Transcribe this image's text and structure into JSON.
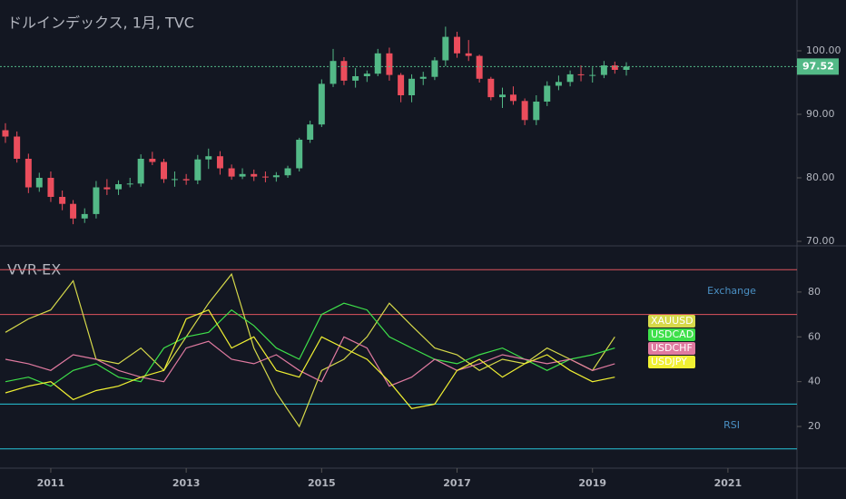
{
  "chart_data": [
    {
      "type": "candlestick",
      "title": "ドルインデックス, 1月, TVC",
      "x": [
        2010.33,
        2010.5,
        2010.67,
        2010.83,
        2011.0,
        2011.17,
        2011.33,
        2011.5,
        2011.67,
        2011.83,
        2012.0,
        2012.17,
        2012.33,
        2012.5,
        2012.67,
        2012.83,
        2013.0,
        2013.17,
        2013.33,
        2013.5,
        2013.67,
        2013.83,
        2014.0,
        2014.17,
        2014.33,
        2014.5,
        2014.67,
        2014.83,
        2015.0,
        2015.17,
        2015.33,
        2015.5,
        2015.67,
        2015.83,
        2016.0,
        2016.17,
        2016.33,
        2016.5,
        2016.67,
        2016.83,
        2017.0,
        2017.17,
        2017.33,
        2017.5,
        2017.67,
        2017.83,
        2018.0,
        2018.17,
        2018.33,
        2018.5,
        2018.67,
        2018.83,
        2019.0,
        2019.17,
        2019.33,
        2019.5
      ],
      "open": [
        87.5,
        86.5,
        83.0,
        78.5,
        80.0,
        77.0,
        75.9,
        73.6,
        74.3,
        78.5,
        78.2,
        79.0,
        79.1,
        83.0,
        82.5,
        79.8,
        79.8,
        79.6,
        82.9,
        83.4,
        81.5,
        80.2,
        80.6,
        80.2,
        80.1,
        80.4,
        81.5,
        86.0,
        88.4,
        94.8,
        98.4,
        95.3,
        96.0,
        96.4,
        99.6,
        96.2,
        93.0,
        95.6,
        95.9,
        98.5,
        102.2,
        99.6,
        99.2,
        95.6,
        92.7,
        93.1,
        92.1,
        89.1,
        92.0,
        94.5,
        95.1,
        96.3,
        96.2,
        96.2,
        97.7,
        97.0
      ],
      "high": [
        88.6,
        87.3,
        83.8,
        80.8,
        81.0,
        78.0,
        76.5,
        75.2,
        79.5,
        79.8,
        79.6,
        80.0,
        83.7,
        84.1,
        83.0,
        81.0,
        80.6,
        83.6,
        84.6,
        84.2,
        82.1,
        81.5,
        81.3,
        81.0,
        80.9,
        81.9,
        86.3,
        89.0,
        95.5,
        100.3,
        99.0,
        97.3,
        96.9,
        100.3,
        100.5,
        96.5,
        96.3,
        96.7,
        99.0,
        103.8,
        103.0,
        101.7,
        99.4,
        95.9,
        94.2,
        94.4,
        92.5,
        93.0,
        95.2,
        96.1,
        96.9,
        97.7,
        97.4,
        98.4,
        98.3,
        98.2
      ],
      "low": [
        85.5,
        82.4,
        77.6,
        77.8,
        76.2,
        74.9,
        72.7,
        72.9,
        73.6,
        77.3,
        77.3,
        78.5,
        78.6,
        82.0,
        79.2,
        78.6,
        78.9,
        79.0,
        81.4,
        80.5,
        79.7,
        79.8,
        79.5,
        79.3,
        79.4,
        80.0,
        81.0,
        85.5,
        88.0,
        94.3,
        94.6,
        94.2,
        95.1,
        96.0,
        95.3,
        91.9,
        91.9,
        94.6,
        95.4,
        97.6,
        98.9,
        98.4,
        95.0,
        92.2,
        91.0,
        91.5,
        88.3,
        88.3,
        91.3,
        93.8,
        94.4,
        95.2,
        95.0,
        95.7,
        96.4,
        96.1
      ],
      "close": [
        86.5,
        83.0,
        78.5,
        80.0,
        77.0,
        75.9,
        73.6,
        74.3,
        78.5,
        78.2,
        79.0,
        79.1,
        83.0,
        82.5,
        79.8,
        79.8,
        79.6,
        82.9,
        83.4,
        81.5,
        80.2,
        80.6,
        80.2,
        80.1,
        80.4,
        81.5,
        86.0,
        88.4,
        94.8,
        98.4,
        95.3,
        96.0,
        96.4,
        99.6,
        96.2,
        93.0,
        95.6,
        95.9,
        98.5,
        102.2,
        99.6,
        99.2,
        95.6,
        92.7,
        93.1,
        92.1,
        89.1,
        92.0,
        94.5,
        95.1,
        96.3,
        96.2,
        96.2,
        97.7,
        97.0,
        97.52
      ],
      "up_color": "#53b987",
      "down_color": "#eb4d5c",
      "xlim": [
        2010.25,
        2022.02
      ],
      "xticks": [
        2011,
        2013,
        2015,
        2017,
        2019,
        2021
      ],
      "ylim": [
        69.43,
        108
      ],
      "yticks": [
        {
          "value": 70,
          "label": "70.00"
        },
        {
          "value": 80,
          "label": "80.00"
        },
        {
          "value": 90,
          "label": "90.00"
        },
        {
          "value": 100,
          "label": "100.00"
        }
      ]
    },
    {
      "type": "line",
      "title": "VVR-EX",
      "x": [
        2010.33,
        2010.67,
        2011.0,
        2011.33,
        2011.67,
        2012.0,
        2012.33,
        2012.67,
        2013.0,
        2013.33,
        2013.67,
        2014.0,
        2014.33,
        2014.67,
        2015.0,
        2015.33,
        2015.67,
        2016.0,
        2016.33,
        2016.67,
        2017.0,
        2017.33,
        2017.67,
        2018.0,
        2018.33,
        2018.67,
        2019.0,
        2019.33
      ],
      "series": [
        {
          "name": "XAUUSD",
          "color": "#d6d94a",
          "values": [
            62,
            68,
            72,
            85,
            50,
            48,
            55,
            45,
            60,
            75,
            88,
            55,
            35,
            20,
            45,
            50,
            60,
            75,
            65,
            55,
            52,
            45,
            50,
            48,
            55,
            50,
            45,
            60
          ]
        },
        {
          "name": "USDCAD",
          "color": "#3ee04a",
          "values": [
            40,
            42,
            38,
            45,
            48,
            42,
            40,
            55,
            60,
            62,
            72,
            65,
            55,
            50,
            70,
            75,
            72,
            60,
            55,
            50,
            48,
            52,
            55,
            50,
            45,
            50,
            52,
            55
          ]
        },
        {
          "name": "USDCHF",
          "color": "#e07aa0",
          "values": [
            50,
            48,
            45,
            52,
            50,
            45,
            42,
            40,
            55,
            58,
            50,
            48,
            52,
            45,
            40,
            60,
            55,
            38,
            42,
            50,
            45,
            48,
            52,
            50,
            48,
            50,
            45,
            48
          ]
        },
        {
          "name": "USDJPY",
          "color": "#f0f032",
          "values": [
            35,
            38,
            40,
            32,
            36,
            38,
            42,
            45,
            68,
            72,
            55,
            60,
            45,
            42,
            60,
            55,
            50,
            40,
            28,
            30,
            45,
            50,
            42,
            48,
            52,
            45,
            40,
            42
          ]
        }
      ],
      "levels": [
        {
          "value": 90,
          "color": "#e0555e"
        },
        {
          "value": 70,
          "color": "#e0555e"
        },
        {
          "value": 30,
          "color": "#26c6da"
        },
        {
          "value": 10,
          "color": "#26c6da"
        }
      ],
      "annotations": [
        "Exchange",
        "RSI"
      ],
      "xlim": [
        2010.25,
        2022.02
      ],
      "ylim": [
        1.8,
        100.2
      ],
      "yticks": [
        20,
        40,
        60,
        80
      ]
    }
  ]
}
